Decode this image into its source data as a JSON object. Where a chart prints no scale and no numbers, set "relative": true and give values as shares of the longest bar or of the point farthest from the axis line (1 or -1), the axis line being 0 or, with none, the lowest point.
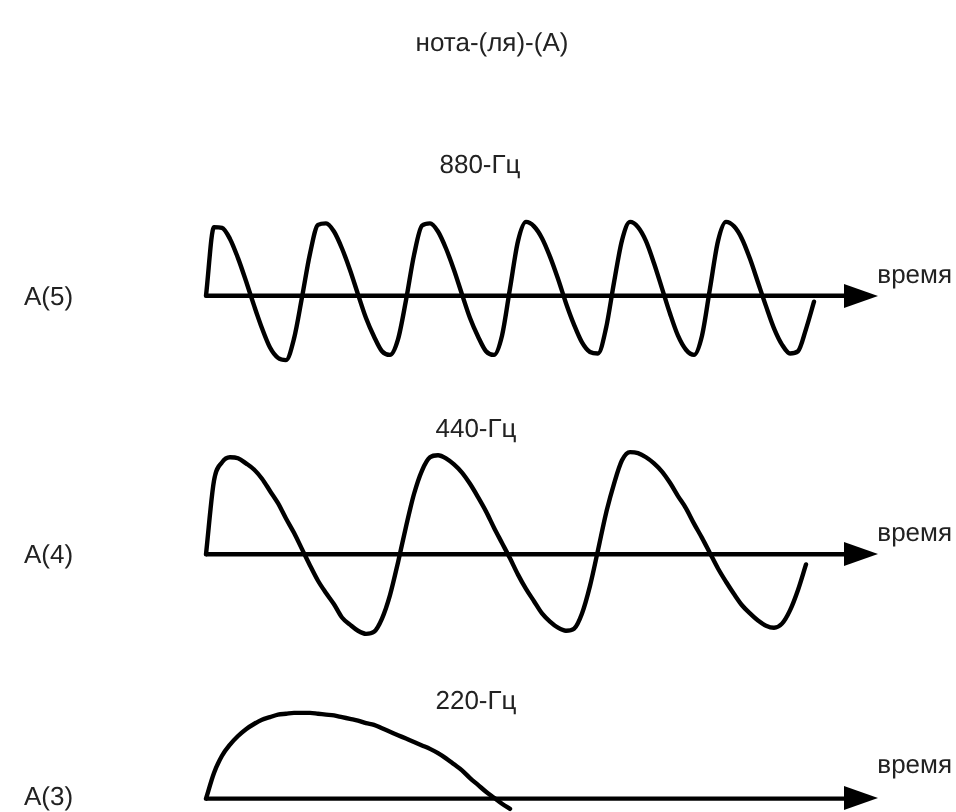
{
  "chart_data": [
    {
      "type": "line",
      "title": "нота-(ля)-(A)",
      "subtitle": "880-Гц",
      "ylabel": "A(5)",
      "xlabel": "время",
      "relative": true,
      "categories": [
        null,
        null,
        null,
        null,
        null,
        null,
        null,
        null,
        null,
        null,
        null,
        null,
        null,
        null,
        null,
        null,
        null,
        null,
        null,
        null,
        null,
        null,
        null,
        null,
        null,
        null,
        null,
        null,
        null,
        null,
        null,
        null,
        null,
        null,
        null,
        null,
        null,
        null,
        null,
        null,
        null,
        null,
        null,
        null,
        null,
        null,
        null,
        null,
        null,
        null,
        null,
        null,
        null,
        null,
        null,
        null,
        null,
        null,
        null,
        null,
        null,
        null,
        null,
        null,
        null,
        null,
        null,
        null,
        null,
        null,
        null,
        null,
        null,
        null,
        null,
        null,
        null,
        null,
        null,
        null,
        null,
        null,
        null,
        null,
        null
      ],
      "series": [
        {
          "color": "#000000",
          "values": [
            0,
            0.93,
            0.92,
            0.77,
            0.51,
            0.2,
            -0.13,
            -0.44,
            -0.7,
            -0.84,
            -0.87,
            -0.58,
            -0.02,
            0.57,
            0.96,
            0.98,
            0.87,
            0.64,
            0.35,
            0.02,
            -0.3,
            -0.55,
            -0.75,
            -0.8,
            -0.59,
            -0.06,
            0.55,
            0.95,
            0.98,
            0.87,
            0.64,
            0.35,
            0.02,
            -0.3,
            -0.55,
            -0.75,
            -0.8,
            -0.54,
            0.1,
            0.74,
            1,
            0.94,
            0.78,
            0.53,
            0.23,
            -0.1,
            -0.39,
            -0.63,
            -0.76,
            -0.78,
            -0.44,
            0.18,
            0.75,
            1,
            0.93,
            0.74,
            0.44,
            0.1,
            -0.24,
            -0.54,
            -0.73,
            -0.8,
            -0.54,
            0.1,
            0.74,
            1,
            0.94,
            0.77,
            0.5,
            0.18,
            -0.14,
            -0.44,
            -0.66,
            -0.78,
            -0.75,
            -0.45,
            -0.08,
            null,
            null,
            null,
            null,
            null,
            null,
            null,
            null
          ]
        }
      ]
    },
    {
      "type": "line",
      "title": "440-Гц",
      "ylabel": "A(4)",
      "xlabel": "время",
      "relative": true,
      "categories": [
        null,
        null,
        null,
        null,
        null,
        null,
        null,
        null,
        null,
        null,
        null,
        null,
        null,
        null,
        null,
        null,
        null,
        null,
        null,
        null,
        null,
        null,
        null,
        null,
        null,
        null,
        null,
        null,
        null,
        null,
        null,
        null,
        null,
        null,
        null,
        null,
        null,
        null,
        null,
        null,
        null,
        null,
        null,
        null,
        null,
        null,
        null,
        null,
        null,
        null,
        null,
        null,
        null,
        null,
        null,
        null,
        null,
        null,
        null,
        null,
        null,
        null,
        null,
        null,
        null,
        null,
        null,
        null,
        null,
        null,
        null,
        null,
        null,
        null,
        null,
        null,
        null,
        null,
        null,
        null,
        null,
        null,
        null,
        null,
        null
      ],
      "series": [
        {
          "color": "#000000",
          "values": [
            0,
            0.72,
            0.9,
            0.95,
            0.94,
            0.89,
            0.83,
            0.74,
            0.62,
            0.5,
            0.35,
            0.21,
            0.05,
            -0.11,
            -0.26,
            -0.38,
            -0.49,
            -0.62,
            -0.69,
            -0.75,
            -0.78,
            -0.76,
            -0.63,
            -0.4,
            -0.08,
            0.27,
            0.59,
            0.82,
            0.95,
            0.97,
            0.94,
            0.88,
            0.8,
            0.69,
            0.56,
            0.42,
            0.26,
            0.11,
            -0.04,
            -0.2,
            -0.34,
            -0.46,
            -0.58,
            -0.66,
            -0.72,
            -0.75,
            -0.73,
            -0.58,
            -0.31,
            0.04,
            0.4,
            0.69,
            0.92,
            1,
            0.99,
            0.95,
            0.89,
            0.81,
            0.7,
            0.57,
            0.45,
            0.3,
            0.16,
            0.01,
            -0.14,
            -0.27,
            -0.39,
            -0.5,
            -0.58,
            -0.65,
            -0.7,
            -0.72,
            -0.68,
            -0.55,
            -0.35,
            -0.1,
            null,
            null,
            null,
            null,
            null,
            null,
            null,
            null,
            null
          ]
        }
      ]
    },
    {
      "type": "line",
      "title": "220-Гц",
      "ylabel": "A(3)",
      "xlabel": "время",
      "relative": true,
      "categories": [
        null,
        null,
        null,
        null,
        null,
        null,
        null,
        null,
        null,
        null,
        null,
        null,
        null,
        null,
        null,
        null,
        null,
        null,
        null,
        null,
        null,
        null,
        null,
        null,
        null,
        null,
        null,
        null,
        null,
        null,
        null,
        null,
        null,
        null,
        null,
        null,
        null,
        null,
        null,
        null,
        null,
        null,
        null,
        null,
        null,
        null,
        null,
        null,
        null,
        null,
        null,
        null,
        null,
        null,
        null,
        null,
        null,
        null,
        null,
        null,
        null,
        null,
        null,
        null,
        null,
        null,
        null,
        null,
        null,
        null,
        null,
        null,
        null,
        null,
        null,
        null,
        null,
        null,
        null,
        null,
        null,
        null,
        null,
        null,
        null
      ],
      "series": [
        {
          "color": "#000000",
          "values": [
            0,
            0.3,
            0.5,
            0.63,
            0.73,
            0.81,
            0.87,
            0.92,
            0.95,
            0.98,
            0.99,
            1,
            1,
            1,
            0.99,
            0.98,
            0.97,
            0.95,
            0.93,
            0.91,
            0.88,
            0.86,
            0.82,
            0.78,
            0.74,
            0.7,
            0.66,
            0.62,
            0.58,
            0.53,
            0.47,
            0.4,
            0.33,
            0.24,
            0.16,
            0.08,
            0.01,
            -0.06,
            -0.12,
            null,
            null,
            null,
            null,
            null,
            null,
            null,
            null,
            null,
            null,
            null,
            null,
            null,
            null,
            null,
            null,
            null,
            null,
            null,
            null,
            null,
            null,
            null,
            null,
            null,
            null,
            null,
            null,
            null,
            null,
            null,
            null,
            null,
            null,
            null,
            null,
            null,
            null,
            null,
            null,
            null,
            null,
            null,
            null,
            null,
            null
          ]
        }
      ]
    }
  ]
}
